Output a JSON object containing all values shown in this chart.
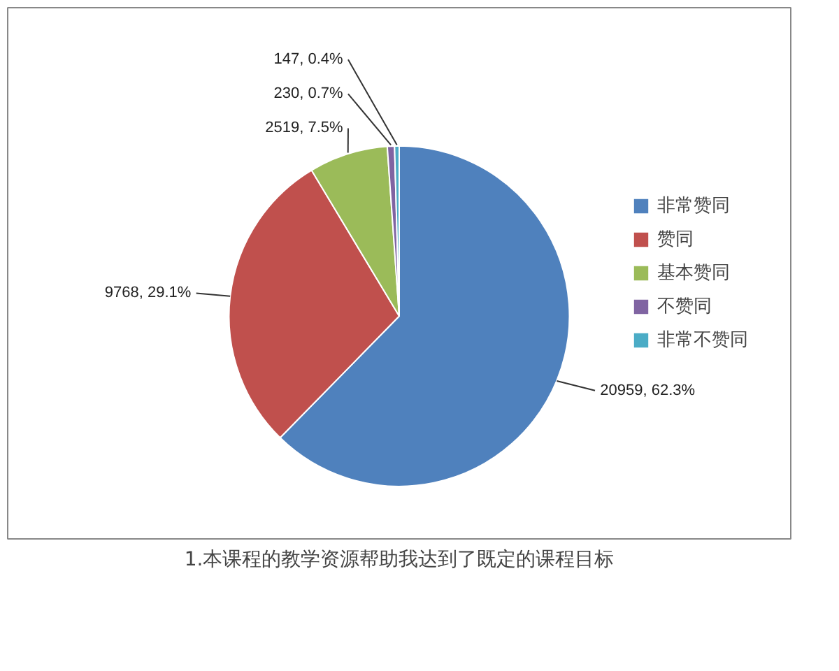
{
  "chart_data": {
    "type": "pie",
    "title": "1.本课程的教学资源帮助我达到了既定的课程目标",
    "categories": [
      "非常赞同",
      "赞同",
      "基本赞同",
      "不赞同",
      "非常不赞同"
    ],
    "values": [
      20959,
      9768,
      2519,
      230,
      147
    ],
    "colors": [
      "#4f81bd",
      "#c0504d",
      "#9bbb59",
      "#8064a2",
      "#4bacc6"
    ],
    "value_labels": [
      "20959, 62.3%",
      "9768, 29.1%",
      "2519, 7.5%",
      "230, 0.7%",
      "147, 0.4%"
    ],
    "legend": "right"
  }
}
